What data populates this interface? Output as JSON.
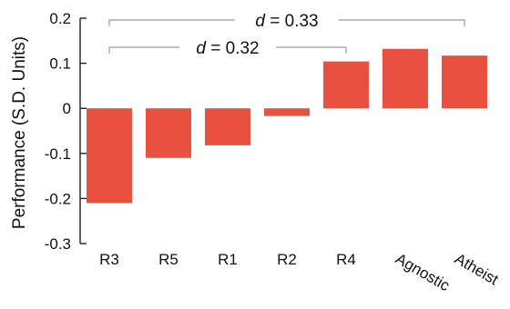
{
  "chart_data": {
    "type": "bar",
    "categories": [
      "R3",
      "R5",
      "R1",
      "R2",
      "R4",
      "Agnostic",
      "Atheist"
    ],
    "values": [
      -0.21,
      -0.11,
      -0.082,
      -0.017,
      0.104,
      0.132,
      0.117
    ],
    "ylabel": "Performance (S.D. Units)",
    "ylim": [
      -0.3,
      0.2
    ],
    "yticks": [
      0.2,
      0.1,
      0,
      -0.1,
      -0.2,
      -0.3
    ],
    "ytick_labels": [
      "0.2",
      "0.1",
      "0",
      "-0.1",
      "-0.2",
      "-0.3"
    ],
    "bar_color": "#e8503f",
    "grid": false,
    "annotations": [
      {
        "from": "R3",
        "to": "Atheist",
        "symbol": "d",
        "text": " = 0.33"
      },
      {
        "from": "R3",
        "to": "R4",
        "symbol": "d",
        "text": " = 0.32"
      }
    ]
  }
}
